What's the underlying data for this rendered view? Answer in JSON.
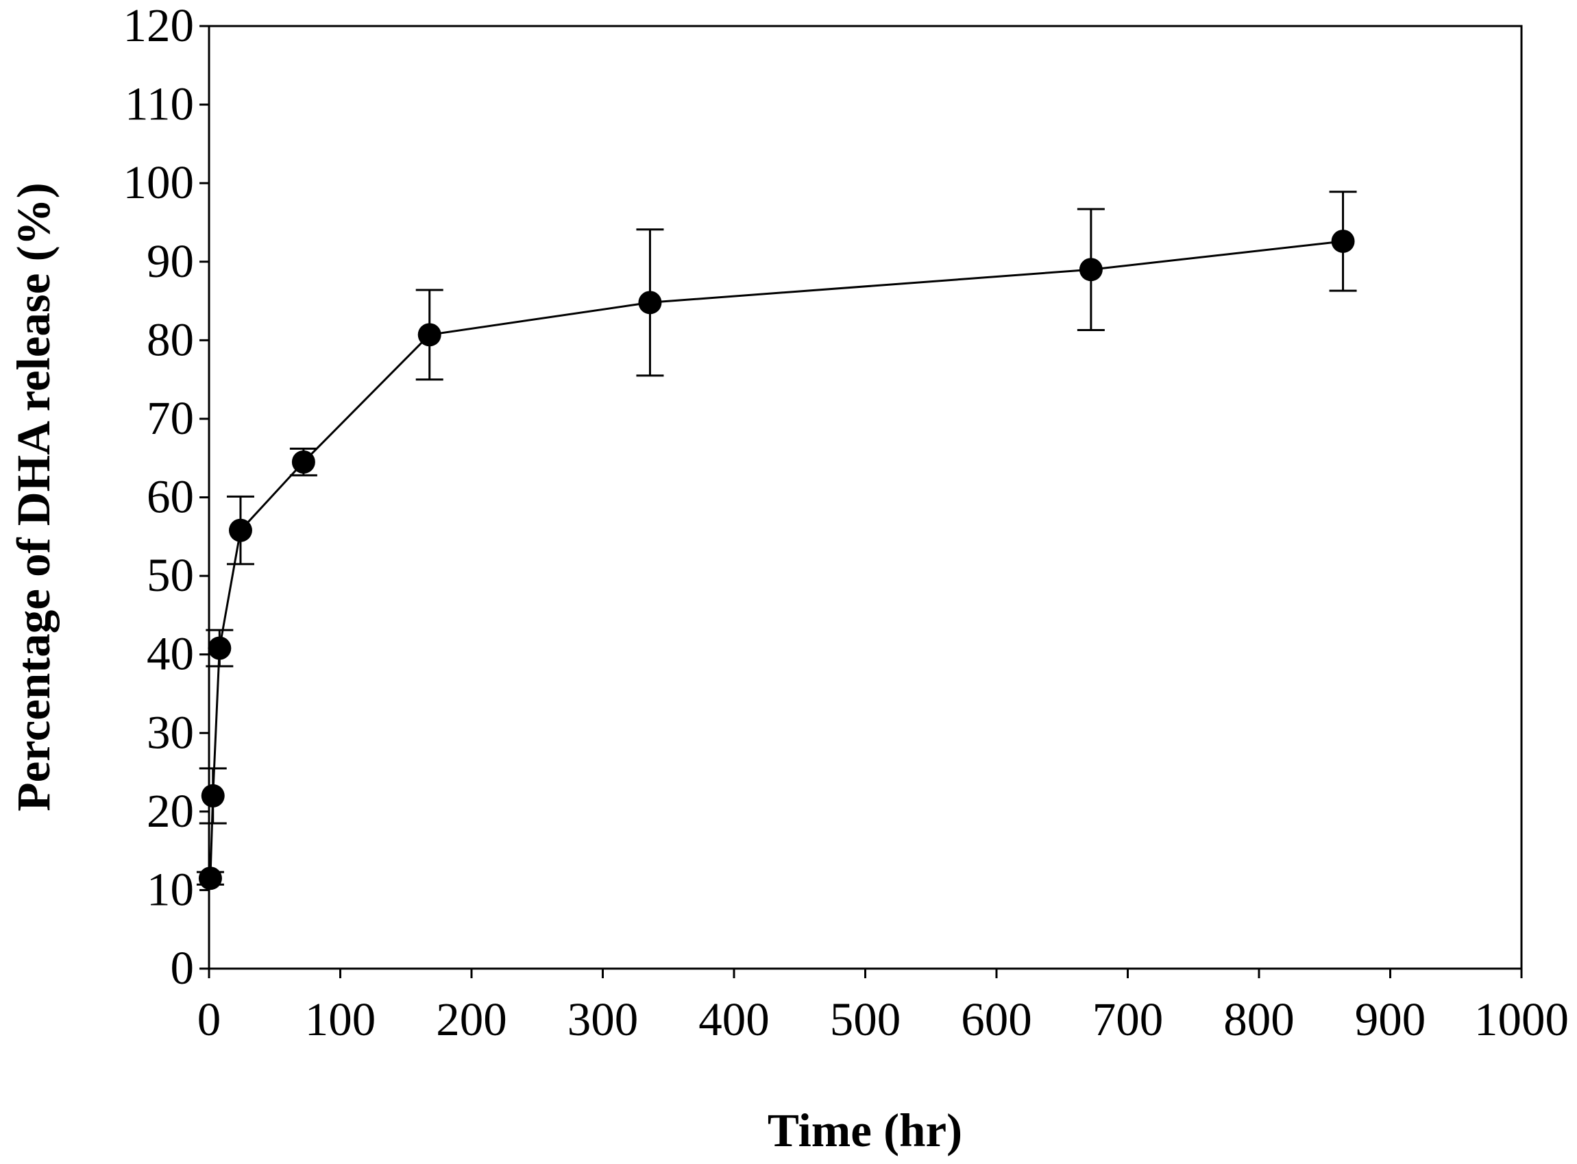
{
  "chart_data": {
    "type": "line",
    "title": "",
    "xlabel": "Time (hr)",
    "ylabel": "Percentage of DHA release (%)",
    "xlim": [
      0,
      1000
    ],
    "ylim": [
      0,
      120
    ],
    "xticks": [
      0,
      100,
      200,
      300,
      400,
      500,
      600,
      700,
      800,
      900,
      1000
    ],
    "yticks": [
      0,
      10,
      20,
      30,
      40,
      50,
      60,
      70,
      80,
      90,
      100,
      110,
      120
    ],
    "grid": false,
    "legend": null,
    "series": [
      {
        "name": "DHA release",
        "color": "#000000",
        "marker": "circle",
        "x": [
          1,
          3,
          8,
          24,
          72,
          168,
          336,
          672,
          864
        ],
        "y": [
          11.5,
          22,
          40.8,
          55.8,
          64.5,
          80.7,
          84.8,
          89.0,
          92.6
        ],
        "error": [
          0.8,
          3.5,
          2.3,
          4.3,
          1.7,
          5.7,
          9.3,
          7.7,
          6.3
        ]
      }
    ]
  }
}
